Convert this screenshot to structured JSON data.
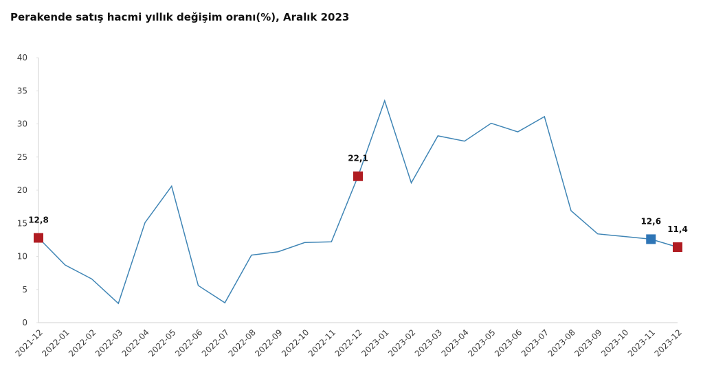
{
  "chart_data": {
    "type": "line",
    "title": "Perakende satış hacmi yıllık değişim oranı(%), Aralık 2023",
    "categories": [
      "2021-12",
      "2022-01",
      "2022-02",
      "2022-03",
      "2022-04",
      "2022-05",
      "2022-06",
      "2022-07",
      "2022-08",
      "2022-09",
      "2022-10",
      "2022-11",
      "2022-12",
      "2023-01",
      "2023-02",
      "2023-03",
      "2023-04",
      "2023-05",
      "2023-06",
      "2023-07",
      "2023-08",
      "2023-09",
      "2023-10",
      "2023-11",
      "2023-12"
    ],
    "series": [
      {
        "name": "Perakende satış hacmi yıllık değişim oranı",
        "color": "#3f85b5",
        "values": [
          12.8,
          8.7,
          6.6,
          2.9,
          15.1,
          20.6,
          5.6,
          3.0,
          10.2,
          10.7,
          12.1,
          12.2,
          22.1,
          33.5,
          21.1,
          28.2,
          27.4,
          30.1,
          28.8,
          31.1,
          16.9,
          13.4,
          13.0,
          12.6,
          11.4
        ],
        "value_labels": [
          "12,8",
          null,
          null,
          null,
          null,
          null,
          null,
          null,
          null,
          null,
          null,
          null,
          "22,1",
          null,
          null,
          null,
          null,
          null,
          null,
          null,
          null,
          null,
          null,
          "12,6",
          "11,4"
        ],
        "marker_colors": [
          "#b01c22",
          null,
          null,
          null,
          null,
          null,
          null,
          null,
          null,
          null,
          null,
          null,
          "#b01c22",
          null,
          null,
          null,
          null,
          null,
          null,
          null,
          null,
          null,
          null,
          "#2e75b6",
          "#b01c22"
        ]
      }
    ],
    "ylim": [
      0,
      40
    ],
    "yticks": [
      0,
      5,
      10,
      15,
      20,
      25,
      30,
      35,
      40
    ],
    "grid": false
  }
}
